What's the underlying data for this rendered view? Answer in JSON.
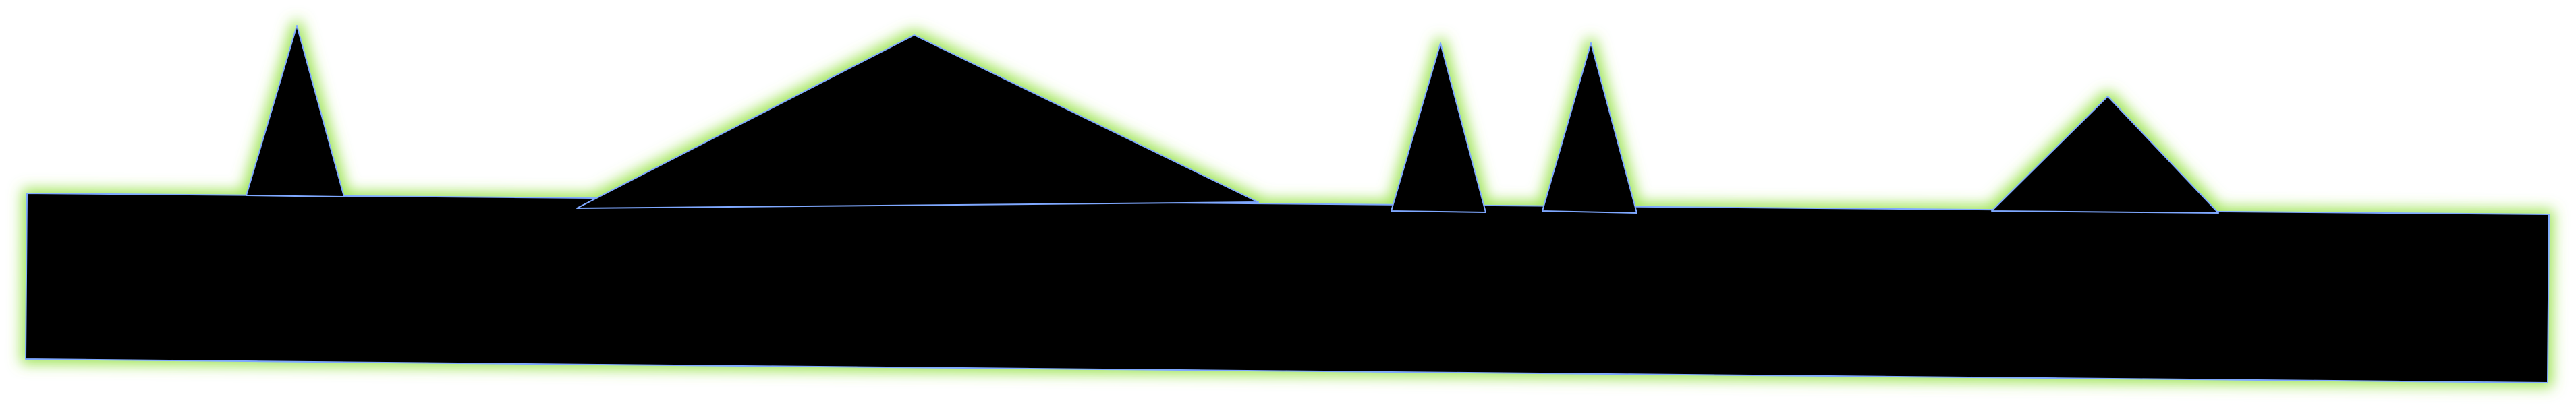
{
  "colors": {
    "background": "#ffffff",
    "fill": "#000000",
    "glow": "#8fe03a",
    "outline": "#7fa8ff"
  }
}
